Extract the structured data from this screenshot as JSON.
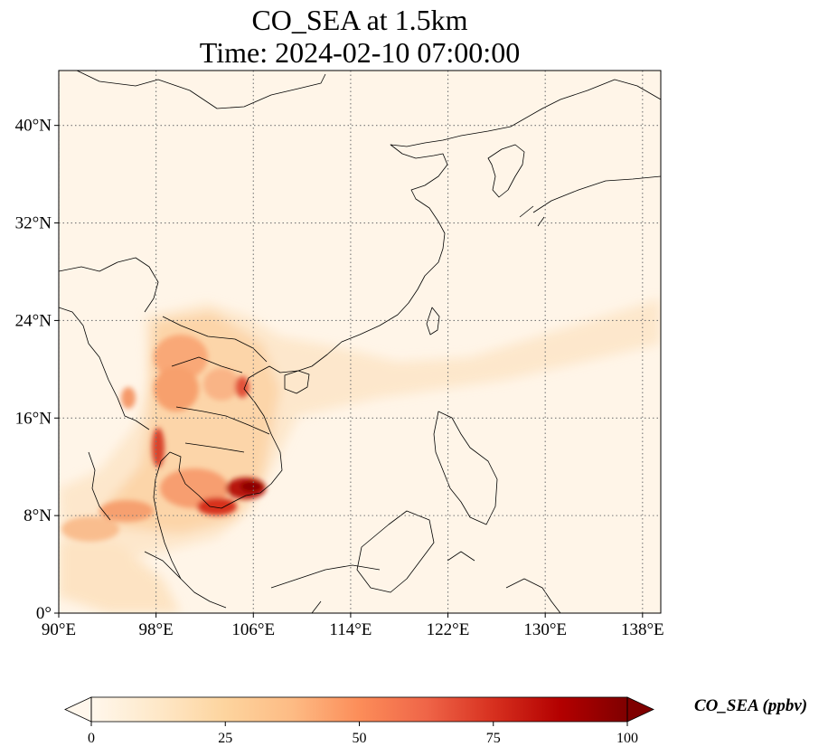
{
  "title_line1": "CO_SEA at 1.5km",
  "title_line2": "Time: 2024-02-10 07:00:00",
  "map": {
    "lon_range": [
      90,
      139.5
    ],
    "lat_range": [
      0,
      44.5
    ],
    "gridlines": "dotted",
    "lon_ticks": [
      {
        "value": 90,
        "label": "90°E"
      },
      {
        "value": 98,
        "label": "98°E"
      },
      {
        "value": 106,
        "label": "106°E"
      },
      {
        "value": 114,
        "label": "114°E"
      },
      {
        "value": 122,
        "label": "122°E"
      },
      {
        "value": 130,
        "label": "130°E"
      },
      {
        "value": 138,
        "label": "138°E"
      }
    ],
    "lat_ticks": [
      {
        "value": 0,
        "label": "0°"
      },
      {
        "value": 8,
        "label": "8°N"
      },
      {
        "value": 16,
        "label": "16°N"
      },
      {
        "value": 24,
        "label": "24°N"
      },
      {
        "value": 32,
        "label": "32°N"
      },
      {
        "value": 40,
        "label": "40°N"
      }
    ]
  },
  "colorbar": {
    "label": "CO_SEA (ppbv)",
    "min": 0,
    "max": 100,
    "ticks": [
      {
        "value": 0,
        "label": "0"
      },
      {
        "value": 25,
        "label": "25"
      },
      {
        "value": 50,
        "label": "50"
      },
      {
        "value": 75,
        "label": "75"
      },
      {
        "value": 100,
        "label": "100"
      }
    ],
    "colormap": "OrRd",
    "colors": [
      "#fff7ec",
      "#fee8c8",
      "#fdd49e",
      "#fdbb84",
      "#fc8d59",
      "#ef6548",
      "#d7301f",
      "#b30000",
      "#7f0000"
    ]
  }
}
